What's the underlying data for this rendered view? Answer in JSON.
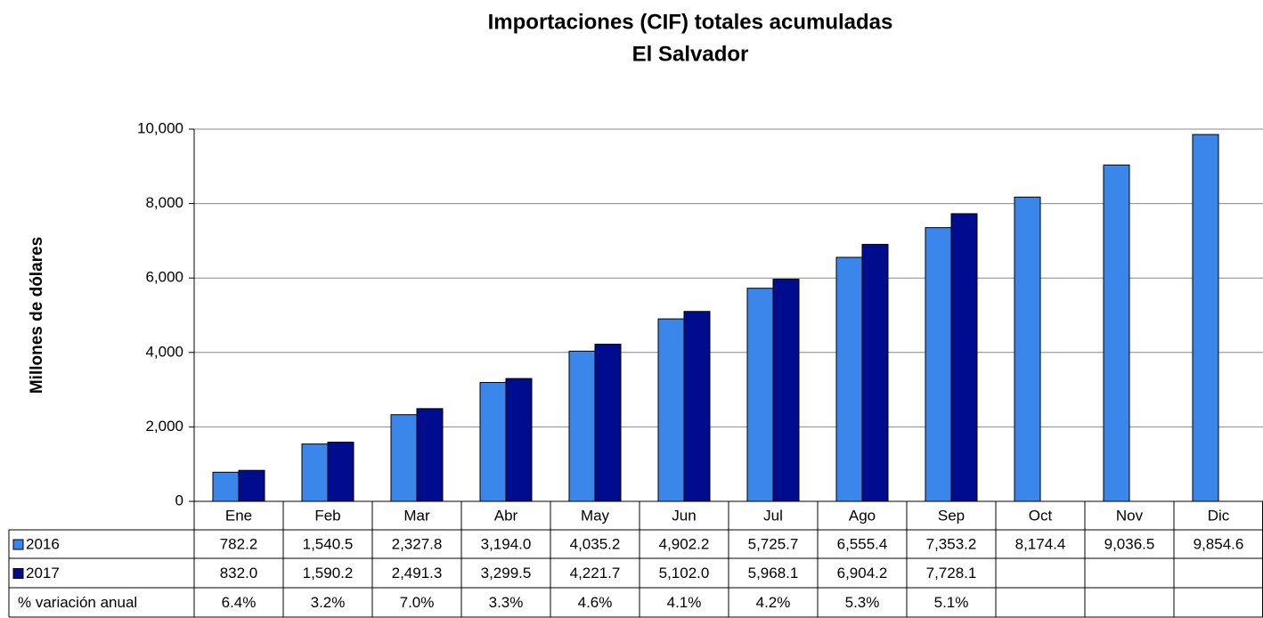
{
  "chart_data": {
    "type": "bar",
    "title": "Importaciones (CIF) totales acumuladas",
    "subtitle": "El Salvador",
    "y_label": "Millones de dólares",
    "categories": [
      "Ene",
      "Feb",
      "Mar",
      "Abr",
      "May",
      "Jun",
      "Jul",
      "Ago",
      "Sep",
      "Oct",
      "Nov",
      "Dic"
    ],
    "series": [
      {
        "name": "2016",
        "color": "#3a86ea",
        "values": [
          782.2,
          1540.5,
          2327.8,
          3194.0,
          4035.2,
          4902.2,
          5725.7,
          6555.4,
          7353.2,
          8174.4,
          9036.5,
          9854.6
        ],
        "value_labels": [
          "782.2",
          "1,540.5",
          "2,327.8",
          "3,194.0",
          "4,035.2",
          "4,902.2",
          "5,725.7",
          "6,555.4",
          "7,353.2",
          "8,174.4",
          "9,036.5",
          "9,854.6"
        ]
      },
      {
        "name": "2017",
        "color": "#000c8e",
        "values": [
          832.0,
          1590.2,
          2491.3,
          3299.5,
          4221.7,
          5102.0,
          5968.1,
          6904.2,
          7728.1,
          null,
          null,
          null
        ],
        "value_labels": [
          "832.0",
          "1,590.2",
          "2,491.3",
          "3,299.5",
          "4,221.7",
          "5,102.0",
          "5,968.1",
          "6,904.2",
          "7,728.1",
          null,
          null,
          null
        ]
      }
    ],
    "variation": {
      "name": "% variación anual",
      "values": [
        6.4,
        3.2,
        7.0,
        3.3,
        4.6,
        4.1,
        4.2,
        5.3,
        5.1,
        null,
        null,
        null
      ],
      "value_labels": [
        "6.4%",
        "3.2%",
        "7.0%",
        "3.3%",
        "4.6%",
        "4.1%",
        "4.2%",
        "5.3%",
        "5.1%",
        null,
        null,
        null
      ]
    },
    "ylim": [
      0,
      10000
    ],
    "yticks": [
      0,
      {
        "value": 2000,
        "label": "2,000"
      },
      {
        "value": 4000,
        "label": "4,000"
      },
      {
        "value": 6000,
        "label": "6,000"
      },
      {
        "value": 8000,
        "label": "8,000"
      },
      {
        "value": 10000,
        "label": "10,000"
      }
    ],
    "grid": true
  }
}
